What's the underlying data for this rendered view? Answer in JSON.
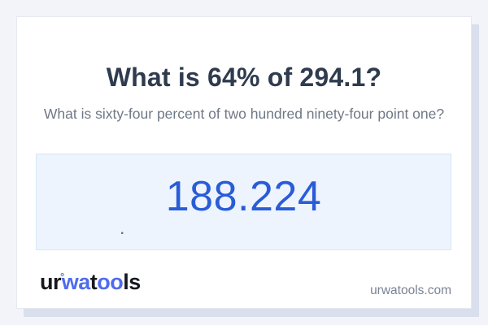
{
  "page": {
    "title": "What is 64% of 294.1?",
    "subtitle": "What is sixty-four percent of two hundred ninety-four point one?",
    "answer": {
      "value": "188.224",
      "stray_dot": "."
    },
    "logo": {
      "part_ur": "ur",
      "degree_mark": "°",
      "part_wa": "wa",
      "part_t": "t",
      "part_oo": "oo",
      "part_ls": "ls",
      "full_name": "urwatools"
    },
    "footer": {
      "domain": "urwatools.com"
    }
  },
  "colors": {
    "page_background": "#f2f4f9",
    "card_background": "#ffffff",
    "card_border": "#e6e8f2",
    "card_shadow": "#d9dfec",
    "title_text": "#2f3b4e",
    "subtitle_text": "#6f7887",
    "answer_box_background": "#edf4fd",
    "answer_box_border": "#d8e6f6",
    "answer_text": "#2a5cd7",
    "logo_dark": "#15181d",
    "logo_blue": "#4f6cee",
    "footer_text": "#7b8494"
  }
}
